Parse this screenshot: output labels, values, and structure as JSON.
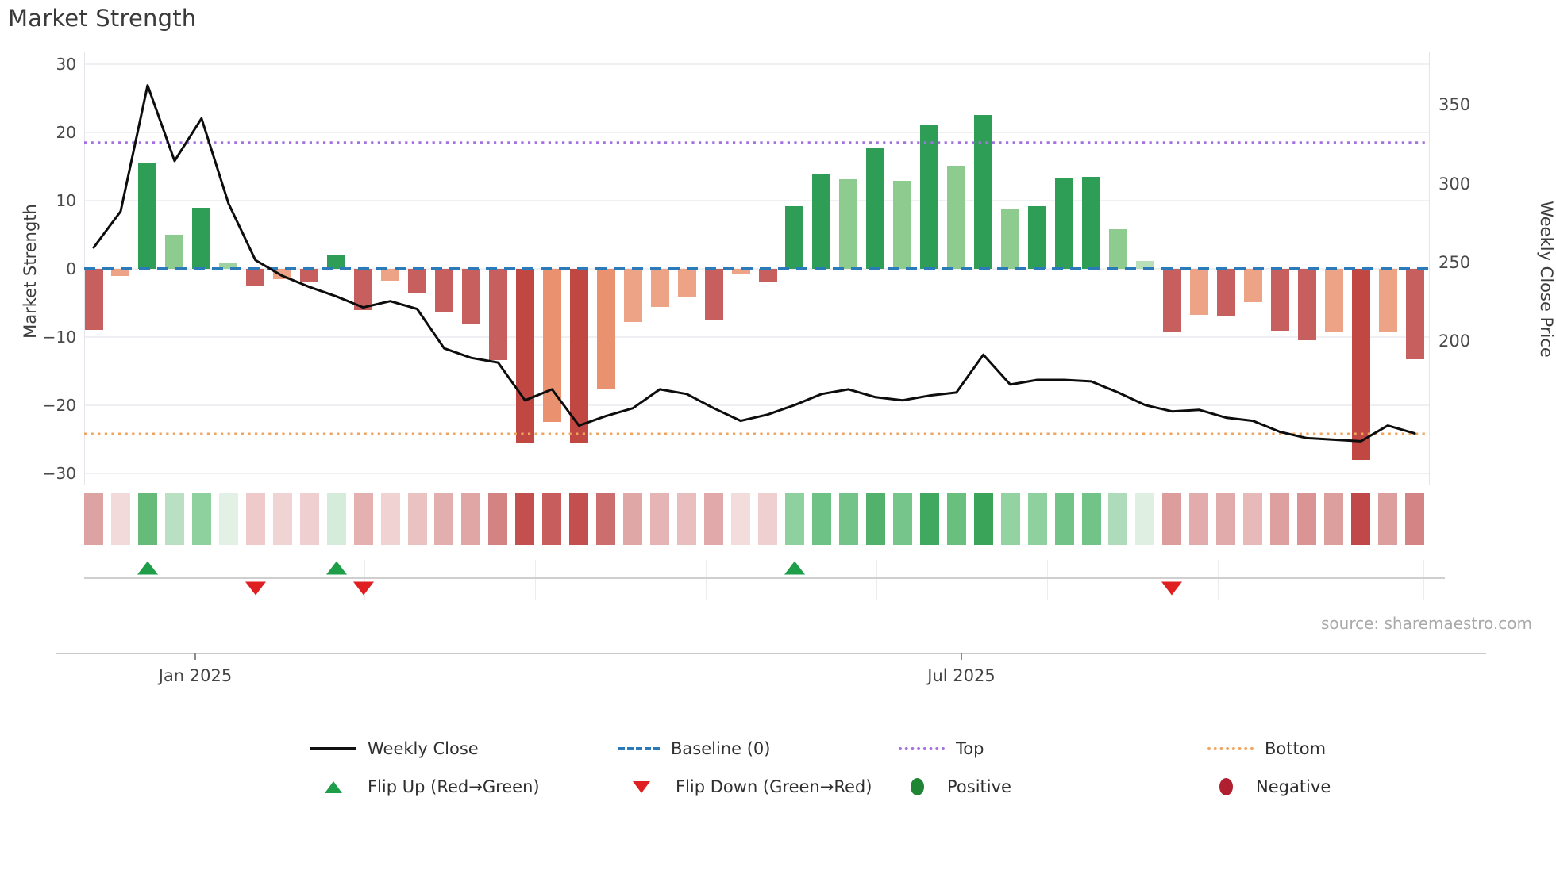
{
  "title": "Market Strength",
  "source": "source: sharemaestro.com",
  "axes": {
    "left_label": "Market Strength",
    "right_label": "Weekly Close Price",
    "left_tick_labels": [
      "30",
      "20",
      "10",
      "0",
      "−10",
      "−20",
      "−30"
    ],
    "left_tick_values": [
      30,
      20,
      10,
      0,
      -10,
      -20,
      -30
    ],
    "right_tick_labels": [
      "350",
      "300",
      "250",
      "200"
    ],
    "right_tick_values": [
      350,
      300,
      250,
      200
    ],
    "x_tick_labels": [
      "Jan 2025",
      "Jul 2025"
    ]
  },
  "chart_data": {
    "type": "bar+line+heatmap",
    "title": "Market Strength",
    "x_unit": "week",
    "xlabel_ticks": [
      "Jan 2025",
      "Jul 2025"
    ],
    "left_ylabel": "Market Strength",
    "right_ylabel": "Weekly Close Price",
    "left_ylim": [
      -32,
      32
    ],
    "right_ylim": [
      109,
      384
    ],
    "grid": "horizontal-light",
    "baseline": 0,
    "top_line": 18.5,
    "bottom_line": -24.2,
    "bars": {
      "name": "Market Strength",
      "values": [
        -9.0,
        -1.0,
        15.5,
        5.0,
        9.0,
        0.8,
        -2.5,
        -1.5,
        -2.0,
        2.0,
        -6.0,
        -1.8,
        -3.5,
        -6.3,
        -8.0,
        -13.4,
        -25.6,
        -22.4,
        -25.6,
        -17.5,
        -7.8,
        -5.6,
        -4.2,
        -7.6,
        -0.8,
        -2.0,
        9.2,
        14.0,
        13.1,
        17.8,
        12.9,
        21.1,
        15.1,
        22.6,
        8.7,
        9.2,
        13.4,
        13.5,
        5.8,
        1.2,
        -9.3,
        -6.8,
        -6.9,
        -4.9,
        -9.1,
        -10.5,
        -9.2,
        -28.0,
        -9.2,
        -13.3
      ],
      "colors": [
        "#c85f5f",
        "#eda385",
        "#2e9e56",
        "#8ecb8e",
        "#2e9e56",
        "#9ed29e",
        "#c85f5f",
        "#eda385",
        "#c85f5f",
        "#2e9e56",
        "#c85f5f",
        "#eda385",
        "#c85f5f",
        "#c85f5f",
        "#c85f5f",
        "#c85f5f",
        "#c14743",
        "#ea9270",
        "#c14743",
        "#ea9270",
        "#eda385",
        "#eda385",
        "#eda385",
        "#c85f5f",
        "#eda385",
        "#c85f5f",
        "#2e9e56",
        "#2e9e56",
        "#8ecb8e",
        "#2e9e56",
        "#8ecb8e",
        "#2e9e56",
        "#8ecb8e",
        "#2e9e56",
        "#8ecb8e",
        "#2e9e56",
        "#2e9e56",
        "#2e9e56",
        "#8ecb8e",
        "#b8dfb8",
        "#c85f5f",
        "#eda385",
        "#c85f5f",
        "#eda385",
        "#c85f5f",
        "#c85f5f",
        "#eda385",
        "#c14743",
        "#eda385",
        "#c85f5f"
      ]
    },
    "line": {
      "name": "Weekly Close",
      "axis": "right",
      "values": [
        260,
        283,
        363,
        315,
        342,
        288,
        252,
        242,
        235,
        229,
        222,
        226,
        221,
        196,
        190,
        187,
        163,
        170,
        147,
        153,
        158,
        170,
        167,
        158,
        150,
        154,
        160,
        167,
        170,
        165,
        163,
        166,
        168,
        192,
        173,
        176,
        176,
        175,
        168,
        160,
        156,
        157,
        152,
        150,
        143,
        139,
        138,
        137,
        147,
        142
      ]
    },
    "heatmap_colors": [
      "#dda3a3",
      "#f2dada",
      "#66bb78",
      "#b9e0c2",
      "#8fd19e",
      "#e2f0e5",
      "#eecaca",
      "#f0d4d4",
      "#efcfcf",
      "#d4ecd9",
      "#e4b0b0",
      "#f0d2d2",
      "#eac2c2",
      "#e3aeae",
      "#e0a6a6",
      "#d48383",
      "#c34f4f",
      "#c75d5d",
      "#c34f4f",
      "#cd6e6e",
      "#e0a7a7",
      "#e5b4b4",
      "#e9bebe",
      "#e1a9a9",
      "#f3dcdc",
      "#efcfcf",
      "#8fd19e",
      "#6fc285",
      "#74c489",
      "#52b26c",
      "#76c58b",
      "#41a95f",
      "#68bf7e",
      "#3aa558",
      "#93d3a2",
      "#8fd19e",
      "#72c387",
      "#72c387",
      "#aedbb9",
      "#dff0e3",
      "#dd9d9d",
      "#e2acac",
      "#e2abab",
      "#e7b9b9",
      "#de9f9f",
      "#da9494",
      "#dd9e9e",
      "#c04848",
      "#dd9e9e",
      "#d48484"
    ],
    "flip_markers": [
      {
        "week": 3,
        "dir": "up"
      },
      {
        "week": 7,
        "dir": "down"
      },
      {
        "week": 10,
        "dir": "up"
      },
      {
        "week": 11,
        "dir": "down"
      },
      {
        "week": 27,
        "dir": "up"
      },
      {
        "week": 41,
        "dir": "down"
      }
    ],
    "colors": {
      "line": "#0d0d0d",
      "baseline": "#2b7bba",
      "top": "#a472e0",
      "bottom": "#f0a45e",
      "flip_up": "#1f9e4a",
      "flip_down": "#e02020",
      "positive_legend": "#1f8434",
      "negative_legend": "#b01f2f"
    }
  },
  "legend": {
    "rows": [
      [
        {
          "swatch": "line-black",
          "label": "Weekly Close"
        },
        {
          "swatch": "dash-blue",
          "label": "Baseline (0)"
        },
        {
          "swatch": "dot-purple",
          "label": "Top"
        },
        {
          "swatch": "dot-orange",
          "label": "Bottom"
        }
      ],
      [
        {
          "swatch": "tri-up-green",
          "label": "Flip Up (Red→Green)"
        },
        {
          "swatch": "tri-down-red",
          "label": "Flip Down (Green→Red)"
        },
        {
          "swatch": "circle-green",
          "label": "Positive"
        },
        {
          "swatch": "circle-darkred",
          "label": "Negative"
        }
      ]
    ]
  }
}
